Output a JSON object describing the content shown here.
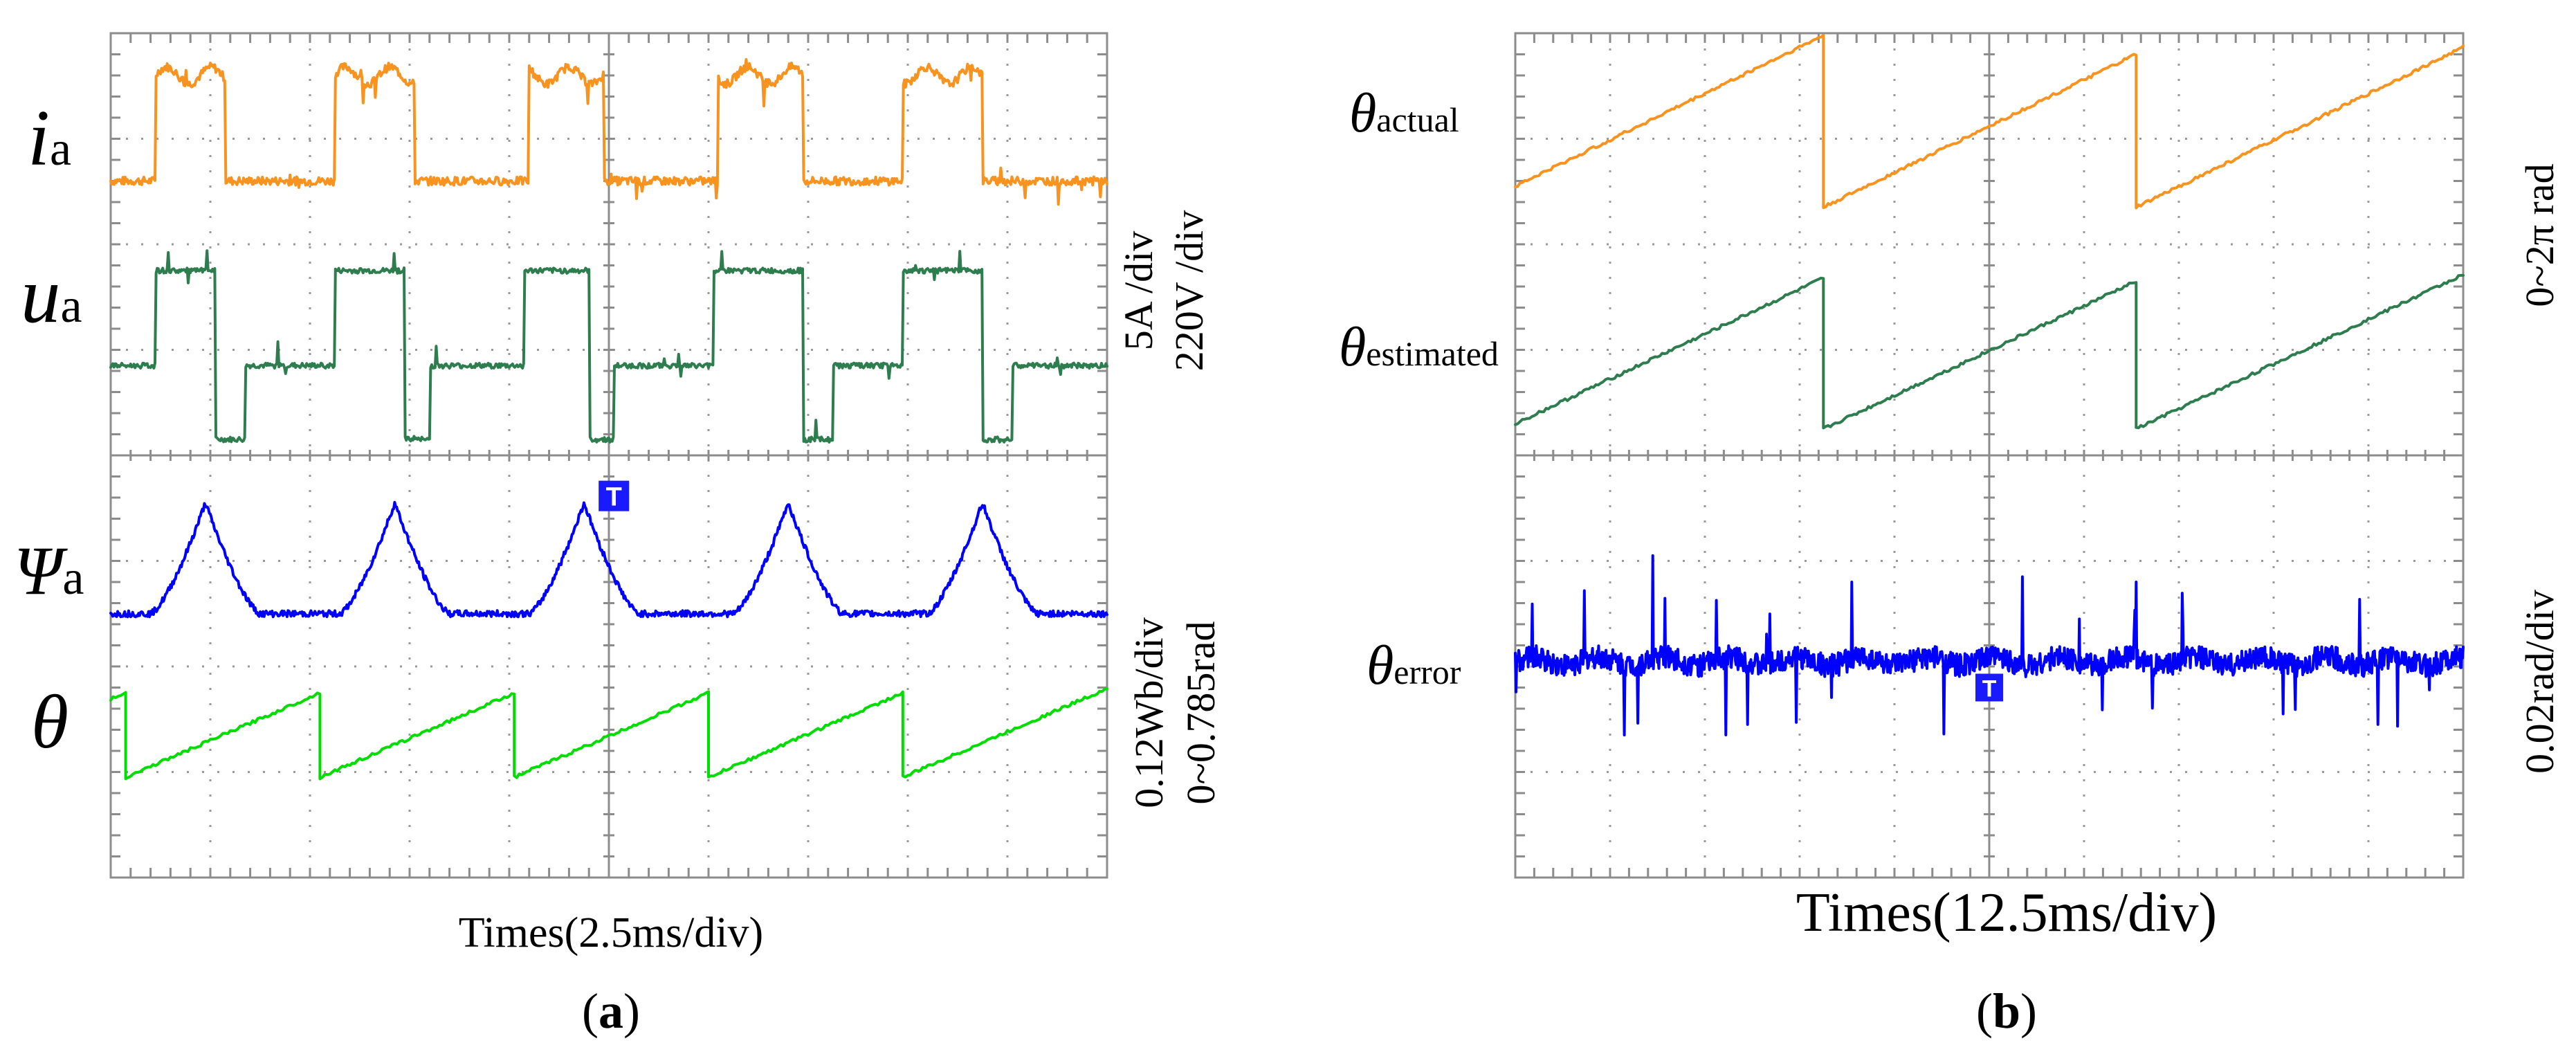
{
  "figure": {
    "panel_a_label": "(a)",
    "panel_b_label": "(b)",
    "panel_a_label_letter": "a",
    "panel_b_label_letter": "b"
  },
  "chart_data": [
    {
      "type": "line",
      "panel": "a",
      "title": "",
      "xlabel": "Times(2.5ms/div)",
      "x_div": 10,
      "y_div": 8,
      "grid": true,
      "scale_labels": [
        "5A /div",
        "220V /div",
        "0.12Wb/div",
        "0~0.785rad"
      ],
      "series": [
        {
          "name": "ia",
          "label_main": "i",
          "label_sub": "a",
          "color": "#f7931e",
          "kind": "pulse",
          "unit": "5A /div",
          "low_div": 6.6,
          "high_div": 7.6,
          "edges_div": [
            [
              0.45,
              1.15
            ],
            [
              2.25,
              3.05
            ],
            [
              4.2,
              4.95
            ],
            [
              6.1,
              6.95
            ],
            [
              7.95,
              8.75
            ]
          ]
        },
        {
          "name": "ua",
          "label_main": "u",
          "label_sub": "a",
          "color": "#2e7d4f",
          "kind": "pulse3",
          "unit": "220V /div",
          "low_div": 4.15,
          "mid_div": 4.85,
          "high_div": 5.75,
          "edges_div": [
            [
              0.45,
              1.05,
              1.35
            ],
            [
              2.25,
              2.95,
              3.2
            ],
            [
              4.15,
              4.8,
              5.05
            ],
            [
              6.05,
              6.95,
              7.25
            ],
            [
              7.95,
              8.75,
              9.05
            ]
          ]
        },
        {
          "name": "psi_a",
          "label_main": "Ψ",
          "label_sub": "a",
          "color": "#0000ff",
          "kind": "peaks",
          "unit": "0.12Wb/div",
          "base_div": 2.5,
          "peak_div": 3.55,
          "peaks_div": [
            0.95,
            2.85,
            4.75,
            6.8,
            8.75
          ],
          "half_width_div": 0.55
        },
        {
          "name": "theta",
          "label_main": "θ",
          "label_sub": "",
          "color": "#00dd00",
          "kind": "saw",
          "unit": "0~0.785rad",
          "low_div": 0.95,
          "high_div": 1.75,
          "resets_div": [
            0.15,
            2.1,
            4.05,
            6.0,
            7.95
          ]
        }
      ]
    },
    {
      "type": "line",
      "panel": "b",
      "title": "",
      "xlabel": "Times(12.5ms/div)",
      "x_div": 10,
      "y_div": 8,
      "grid": true,
      "scale_labels": [
        "0~2π rad",
        "0.02rad/div"
      ],
      "series": [
        {
          "name": "theta_actual",
          "label_main": "θ",
          "label_sub": "actual",
          "color": "#f7931e",
          "kind": "saw",
          "unit": "0~2π rad",
          "low_div": 6.35,
          "high_div": 7.8,
          "resets_div": [
            3.25,
            6.55
          ],
          "start_div": 0.0,
          "start_level_div": 6.55
        },
        {
          "name": "theta_estimated",
          "label_main": "θ",
          "label_sub": "estimated",
          "color": "#2e7d4f",
          "kind": "saw",
          "unit": "0~2π rad",
          "low_div": 4.25,
          "high_div": 5.65,
          "resets_div": [
            3.25,
            6.55
          ],
          "start_div": 0.0,
          "start_level_div": 4.3
        },
        {
          "name": "theta_error",
          "label_main": "θ",
          "label_sub": "error",
          "color": "#0000ff",
          "kind": "noise",
          "unit": "0.02rad/div",
          "base_div": 2.05,
          "spikes_up": [
            [
              1.45,
              3.05
            ],
            [
              3.55,
              2.8
            ],
            [
              5.35,
              2.85
            ],
            [
              6.55,
              2.8
            ],
            [
              5.95,
              2.45
            ]
          ],
          "spikes_down": [
            [
              1.15,
              1.35
            ],
            [
              2.45,
              1.45
            ],
            [
              8.1,
              1.55
            ],
            [
              9.1,
              1.45
            ]
          ]
        }
      ]
    }
  ]
}
